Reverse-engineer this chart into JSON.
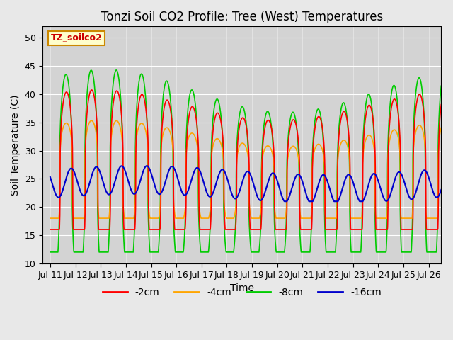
{
  "title": "Tonzi Soil CO2 Profile: Tree (West) Temperatures",
  "xlabel": "Time",
  "ylabel": "Soil Temperature (C)",
  "ylim": [
    10,
    52
  ],
  "yticks": [
    10,
    15,
    20,
    25,
    30,
    35,
    40,
    45,
    50
  ],
  "xtick_labels": [
    "Jul 11",
    "Jul 12",
    "Jul 13",
    "Jul 14",
    "Jul 15",
    "Jul 16",
    "Jul 17",
    "Jul 18",
    "Jul 19",
    "Jul 20",
    "Jul 21",
    "Jul 22",
    "Jul 23",
    "Jul 24",
    "Jul 25",
    "Jul 26"
  ],
  "colors": {
    "-2cm": "#ff0000",
    "-4cm": "#ffa500",
    "-8cm": "#00cc00",
    "-16cm": "#0000cc"
  },
  "legend_label": "TZ_soilco2",
  "bg_color": "#e8e8e8",
  "plot_bg_color": "#d3d3d3",
  "title_fontsize": 12,
  "axis_fontsize": 10,
  "tick_fontsize": 9,
  "legend_fontsize": 10,
  "linewidth_shallow": 1.2,
  "linewidth_deep": 1.5
}
